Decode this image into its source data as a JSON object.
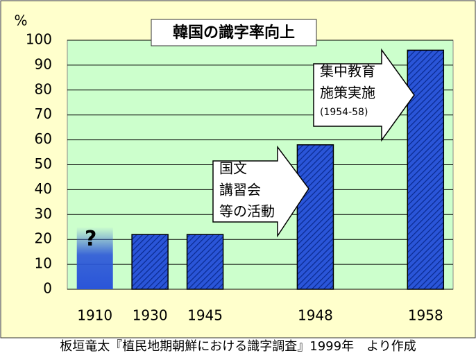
{
  "chart_data": {
    "type": "bar",
    "title": "韓国の識字率向上",
    "y_unit": "%",
    "categories": [
      "1910",
      "1930",
      "1945",
      null,
      "1948",
      null,
      "1958"
    ],
    "values": [
      25,
      22,
      22,
      null,
      58,
      null,
      96
    ],
    "color": "#2a55d8",
    "plot_background": "#ccffcc",
    "ylim": [
      0,
      100
    ],
    "yticks": [
      0,
      10,
      20,
      30,
      40,
      50,
      60,
      70,
      80,
      90,
      100
    ],
    "grid": true,
    "uncertain": {
      "category": "1910",
      "mark": "?"
    },
    "annotations": [
      {
        "lines": [
          "国文",
          "講習会",
          "等の活動"
        ]
      },
      {
        "lines": [
          "集中教育",
          "施策実施",
          "(1954-58)"
        ]
      }
    ],
    "source": "板垣竜太『植民地期朝鮮における識字調査』1999年　より作成"
  }
}
